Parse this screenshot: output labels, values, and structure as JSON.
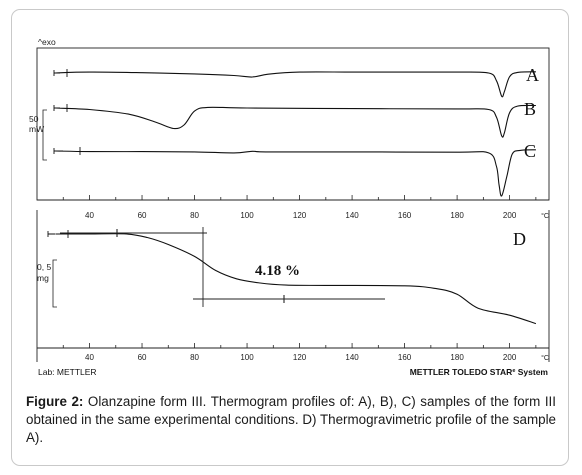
{
  "chart_data": [
    {
      "type": "line",
      "title": "",
      "ylabel_top": "^exo",
      "scale_value": "50",
      "scale_unit": "mW",
      "x_unit": "°C",
      "xlim": [
        20,
        215
      ],
      "x_ticks": [
        40,
        60,
        80,
        100,
        120,
        140,
        160,
        180,
        200
      ],
      "series": [
        {
          "name": "A",
          "x": [
            27,
            40,
            60,
            80,
            95,
            102,
            108,
            120,
            140,
            160,
            180,
            192,
            195,
            197,
            198,
            200,
            203,
            210
          ],
          "y": [
            0,
            0.3,
            0.1,
            -0.3,
            -0.8,
            -1.3,
            -0.4,
            0.3,
            0.3,
            0.3,
            0.3,
            0.0,
            -2.5,
            -7.5,
            -6,
            -1.2,
            0.2,
            0.4
          ]
        },
        {
          "name": "B",
          "x": [
            27,
            40,
            55,
            65,
            72,
            76,
            80,
            85,
            100,
            140,
            180,
            192,
            195,
            197,
            198,
            200,
            203,
            210
          ],
          "y": [
            0,
            -0.5,
            -2,
            -4.5,
            -6.6,
            -5.5,
            -1.0,
            0.2,
            0.0,
            -0.2,
            -0.3,
            -0.5,
            -3,
            -9,
            -8,
            -1.5,
            0.6,
            0.8
          ]
        },
        {
          "name": "C",
          "x": [
            27,
            40,
            60,
            80,
            95,
            102,
            108,
            140,
            180,
            192,
            195,
            196,
            197,
            199,
            201,
            204,
            210
          ],
          "y": [
            0,
            -0.2,
            -0.2,
            -0.3,
            -0.6,
            -0.1,
            -0.3,
            -0.3,
            -0.4,
            -0.6,
            -5,
            -11,
            -14.5,
            -8,
            -1,
            0.2,
            0.4
          ]
        }
      ]
    },
    {
      "type": "line",
      "title": "",
      "scale_value": "0, 5",
      "scale_unit": "mg",
      "x_unit": "°C",
      "xlim": [
        20,
        215
      ],
      "x_ticks": [
        40,
        60,
        80,
        100,
        120,
        140,
        160,
        180,
        200
      ],
      "annotation": "4.18 %",
      "series": [
        {
          "name": "D",
          "x": [
            27,
            40,
            54,
            62,
            70,
            80,
            88,
            96,
            105,
            115,
            130,
            160,
            172,
            180,
            188,
            200,
            210
          ],
          "y": [
            0,
            0,
            0,
            -0.5,
            -1.5,
            -3.2,
            -5.2,
            -6.4,
            -7.0,
            -7.3,
            -7.35,
            -7.4,
            -7.8,
            -8.6,
            -10.6,
            -11.6,
            -12.8
          ]
        }
      ]
    }
  ],
  "footer": {
    "lab": "Lab: METTLER",
    "system": "METTLER TOLEDO STAR",
    "system_mark": "e",
    "system_tail": " System"
  },
  "caption": {
    "label": "Figure 2:",
    "text": " Olanzapine form III. Thermogram profiles of: A), B), C) samples of the form III obtained in the same experimental conditions. D) Thermogravimetric profile of the sample A)."
  }
}
